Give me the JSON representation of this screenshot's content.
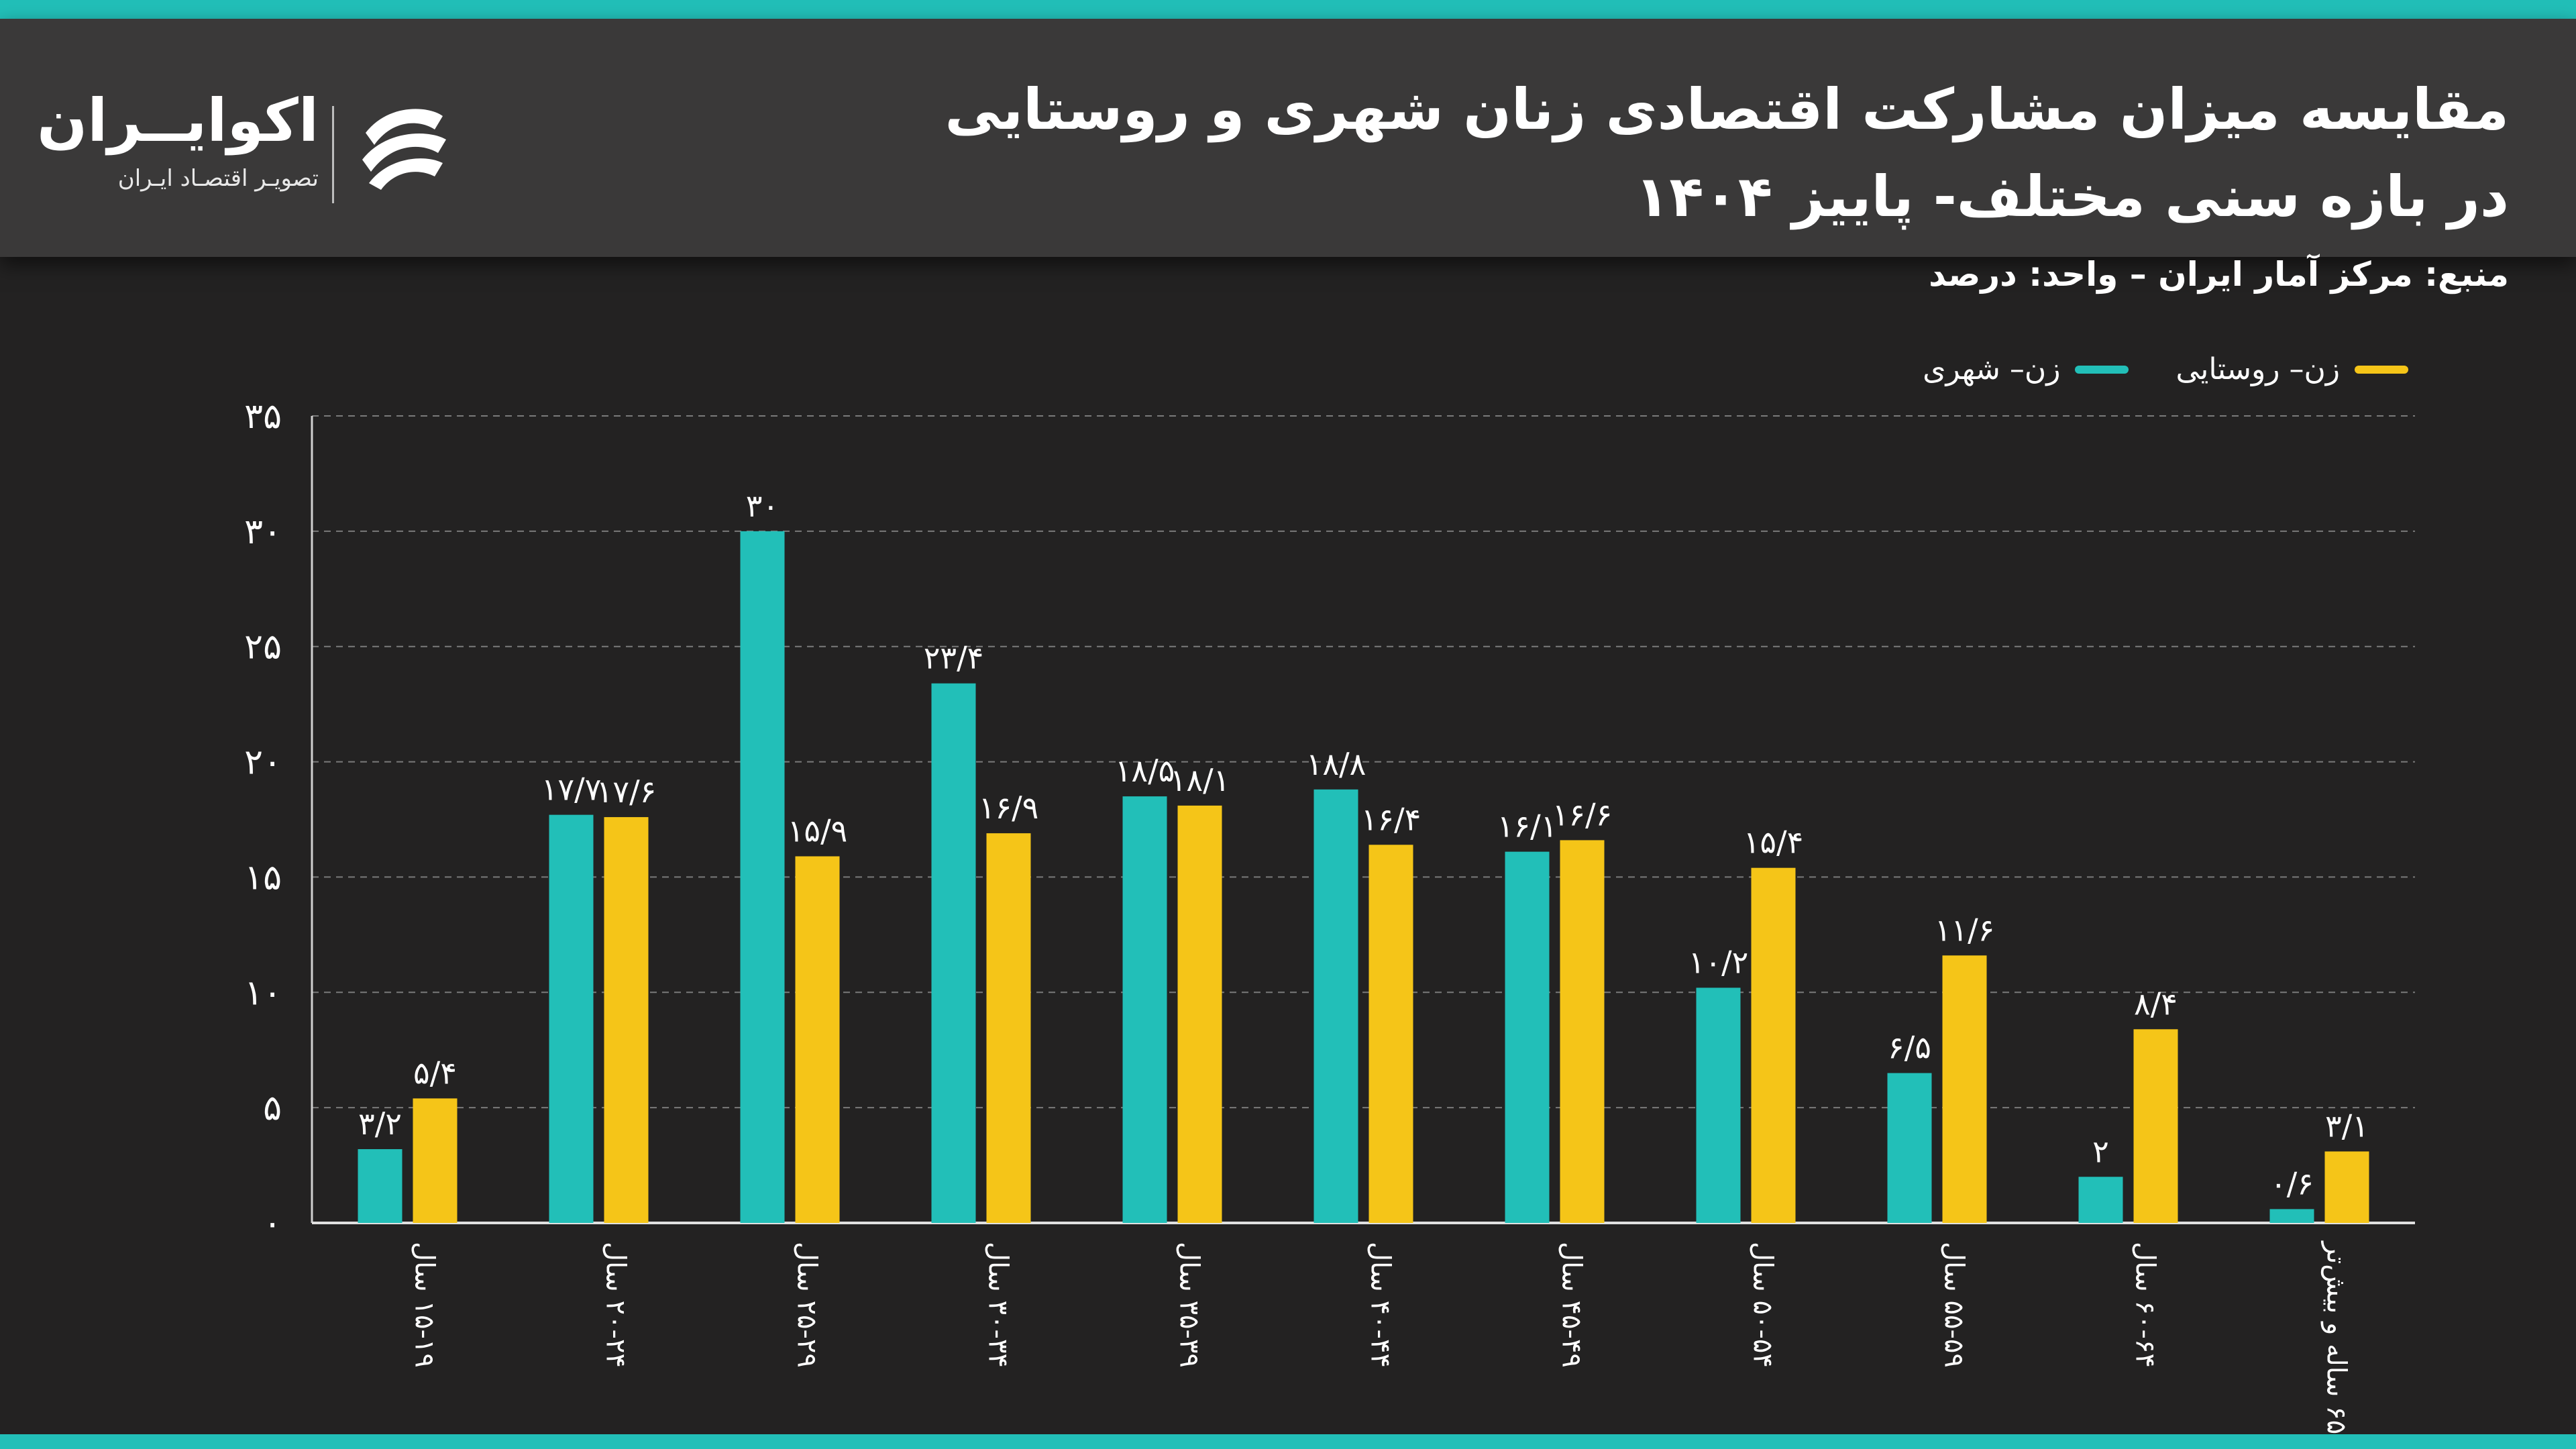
{
  "header": {
    "title_line1": "مقایسه میزان مشارکت اقتصادی زنان شهری و روستایی",
    "title_line2": "در بازه سنی مختلف- پاییز ۱۴۰۴",
    "source": "منبع: مرکز آمار ایران – واحد: درصد"
  },
  "logo": {
    "name": "اکوایــران",
    "tagline": "تصویـر اقتصـاد ایـران"
  },
  "colors": {
    "urban": "#22bfb8",
    "rural": "#f5c518",
    "background": "#232222",
    "header": "#3a3939"
  },
  "chart_data": {
    "type": "bar",
    "title": "مقایسه میزان مشارکت اقتصادی زنان شهری و روستایی در بازه سنی مختلف- پاییز ۱۴۰۴",
    "unit": "درصد",
    "categories": [
      "۱۵-۱۹ سال",
      "۲۰-۲۴ سال",
      "۲۵-۲۹ سال",
      "۳۰-۳۴ سال",
      "۳۵-۳۹ سال",
      "۴۰-۴۴ سال",
      "۴۵-۴۹ سال",
      "۵۰-۵۴ سال",
      "۵۵-۵۹ سال",
      "۶۰-۶۴ سال",
      "۶۵ ساله و بیش‌تر"
    ],
    "series": [
      {
        "name": "زن– شهری",
        "color": "#22bfb8",
        "values": [
          3.2,
          17.7,
          30,
          23.4,
          18.5,
          18.8,
          16.1,
          10.2,
          6.5,
          2,
          0.6
        ],
        "labels": [
          "۳/۲",
          "۱۷/۷",
          "۳۰",
          "۲۳/۴",
          "۱۸/۵",
          "۱۸/۸",
          "۱۶/۱",
          "۱۰/۲",
          "۶/۵",
          "۲",
          "۰/۶"
        ]
      },
      {
        "name": "زن– روستایی",
        "color": "#f5c518",
        "values": [
          5.4,
          17.6,
          15.9,
          16.9,
          18.1,
          16.4,
          16.6,
          15.4,
          11.6,
          8.4,
          3.1
        ],
        "labels": [
          "۵/۴",
          "۱۷/۶",
          "۱۵/۹",
          "۱۶/۹",
          "۱۸/۱",
          "۱۶/۴",
          "۱۶/۶",
          "۱۵/۴",
          "۱۱/۶",
          "۸/۴",
          "۳/۱"
        ]
      }
    ],
    "yticks": [
      0,
      5,
      10,
      15,
      20,
      25,
      30,
      35
    ],
    "ytick_labels": [
      "۰",
      "۵",
      "۱۰",
      "۱۵",
      "۲۰",
      "۲۵",
      "۳۰",
      "۳۵"
    ],
    "ylim": [
      0,
      35
    ],
    "grid": true,
    "legend": "top-right"
  }
}
